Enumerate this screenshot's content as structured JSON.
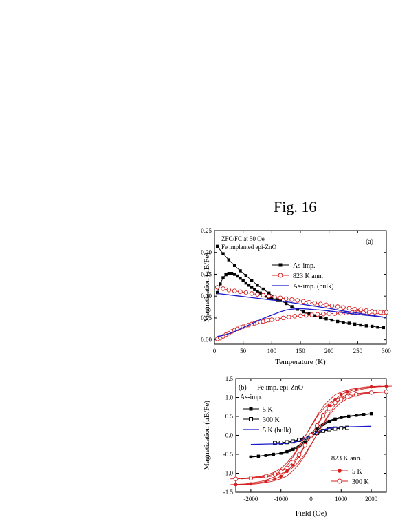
{
  "figure_title": "Fig. 16",
  "chart_data": [
    {
      "type": "line",
      "panel_label": "(a)",
      "annotations": [
        "ZFC/FC at 50 Oe",
        "Fe implanted epi-ZnO"
      ],
      "xlabel": "Temperature (K)",
      "ylabel": "Magnetization (μB/Fe)",
      "xlim": [
        0,
        300
      ],
      "ylim": [
        -0.01,
        0.25
      ],
      "xticks": [
        0,
        50,
        100,
        150,
        200,
        250,
        300
      ],
      "yticks": [
        0.0,
        0.05,
        0.1,
        0.15,
        0.2,
        0.25
      ],
      "ytick_labels": [
        "0.00",
        "0.05",
        "0.10",
        "0.15",
        "0.20",
        "0.25"
      ],
      "legend": [
        "As-imp.",
        "823 K ann.",
        "As-imp. (bulk)"
      ],
      "series": [
        {
          "name": "As-imp.",
          "branch": "FC",
          "color": "#000000",
          "marker": "filled-square",
          "x": [
            5,
            15,
            25,
            35,
            45,
            55,
            65,
            75,
            85,
            95,
            105,
            115,
            125,
            135,
            145,
            155,
            165,
            175,
            185,
            195,
            205,
            215,
            225,
            235,
            245,
            255,
            265,
            275,
            285,
            295
          ],
          "y": [
            0.214,
            0.197,
            0.183,
            0.17,
            0.158,
            0.147,
            0.136,
            0.125,
            0.116,
            0.107,
            0.098,
            0.09,
            0.083,
            0.076,
            0.07,
            0.064,
            0.059,
            0.055,
            0.051,
            0.048,
            0.045,
            0.042,
            0.04,
            0.038,
            0.036,
            0.034,
            0.032,
            0.031,
            0.029,
            0.028
          ]
        },
        {
          "name": "As-imp.",
          "branch": "ZFC",
          "color": "#000000",
          "marker": "filled-square",
          "x": [
            5,
            10,
            15,
            20,
            25,
            30,
            35,
            40,
            45,
            50,
            55,
            60,
            65,
            70,
            75,
            80,
            85,
            90,
            95,
            100,
            110
          ],
          "y": [
            0.108,
            0.128,
            0.142,
            0.149,
            0.152,
            0.152,
            0.15,
            0.146,
            0.141,
            0.136,
            0.13,
            0.125,
            0.12,
            0.115,
            0.111,
            0.107,
            0.103,
            0.1,
            0.097,
            0.094,
            0.09
          ]
        },
        {
          "name": "823 K ann.",
          "branch": "FC",
          "color": "#d42020",
          "marker": "open-circle",
          "x": [
            5,
            15,
            25,
            35,
            45,
            55,
            65,
            75,
            85,
            95,
            105,
            115,
            125,
            135,
            145,
            155,
            165,
            175,
            185,
            195,
            205,
            215,
            225,
            235,
            245,
            255,
            265,
            275,
            285,
            295
          ],
          "y": [
            0.12,
            0.117,
            0.114,
            0.112,
            0.11,
            0.108,
            0.106,
            0.104,
            0.102,
            0.1,
            0.098,
            0.096,
            0.094,
            0.092,
            0.09,
            0.088,
            0.086,
            0.084,
            0.082,
            0.08,
            0.078,
            0.076,
            0.074,
            0.072,
            0.07,
            0.069,
            0.067,
            0.065,
            0.064,
            0.062
          ]
        },
        {
          "name": "823 K ann.",
          "branch": "ZFC",
          "color": "#d42020",
          "marker": "open-circle",
          "x": [
            5,
            10,
            15,
            20,
            25,
            30,
            35,
            40,
            45,
            50,
            55,
            60,
            65,
            70,
            75,
            80,
            85,
            90,
            95,
            100,
            110,
            120,
            130,
            140,
            150,
            160,
            170,
            180,
            190,
            200,
            210,
            220,
            230,
            240,
            250,
            260,
            270,
            280,
            290,
            300
          ],
          "y": [
            0.002,
            0.004,
            0.008,
            0.012,
            0.015,
            0.019,
            0.022,
            0.025,
            0.028,
            0.03,
            0.032,
            0.034,
            0.036,
            0.038,
            0.04,
            0.041,
            0.042,
            0.044,
            0.045,
            0.046,
            0.048,
            0.05,
            0.052,
            0.054,
            0.055,
            0.056,
            0.057,
            0.058,
            0.059,
            0.06,
            0.06,
            0.061,
            0.061,
            0.062,
            0.062,
            0.062,
            0.063,
            0.063,
            0.063,
            0.063
          ]
        },
        {
          "name": "As-imp. (bulk)",
          "branch": "FC",
          "color": "#1a1acc",
          "marker": "none",
          "x": [
            5,
            25,
            50,
            75,
            100,
            125,
            150,
            175,
            200,
            225,
            250,
            275,
            300
          ],
          "y": [
            0.106,
            0.103,
            0.099,
            0.095,
            0.091,
            0.087,
            0.082,
            0.077,
            0.072,
            0.066,
            0.061,
            0.056,
            0.051
          ]
        },
        {
          "name": "As-imp. (bulk)",
          "branch": "ZFC",
          "color": "#1a1acc",
          "marker": "none",
          "x": [
            5,
            15,
            25,
            35,
            45,
            55,
            65,
            75,
            85,
            95,
            105,
            115,
            125,
            135,
            145,
            155,
            165,
            175,
            185,
            200,
            225,
            250,
            275,
            300
          ],
          "y": [
            0.008,
            0.01,
            0.014,
            0.019,
            0.025,
            0.031,
            0.037,
            0.043,
            0.049,
            0.054,
            0.059,
            0.064,
            0.068,
            0.07,
            0.071,
            0.071,
            0.07,
            0.069,
            0.068,
            0.066,
            0.062,
            0.058,
            0.055,
            0.051
          ]
        }
      ]
    },
    {
      "type": "line",
      "panel_label": "(b)",
      "annotations": [
        "Fe imp. epi-ZnO",
        "As-imp.",
        "823 K ann."
      ],
      "xlabel": "Field (Oe)",
      "ylabel": "Magnetization (μB/Fe)",
      "xlim": [
        -2500,
        2500
      ],
      "ylim": [
        -1.5,
        1.5
      ],
      "xticks": [
        -2000,
        -1000,
        0,
        1000,
        2000
      ],
      "yticks": [
        -1.5,
        -1.0,
        -0.5,
        0.0,
        0.5,
        1.0,
        1.5
      ],
      "ytick_labels": [
        "-1.5",
        "-1.0",
        "-0.5",
        "0.0",
        "0.5",
        "1.0",
        "1.5"
      ],
      "legend": [
        "5 K",
        "300 K",
        "5 K (bulk)",
        "5 K",
        "300 K"
      ],
      "series": [
        {
          "name": "5 K",
          "group": "As-imp.",
          "color": "#000000",
          "marker": "filled-square",
          "x": [
            -2000,
            -1750,
            -1500,
            -1250,
            -1000,
            -800,
            -600,
            -400,
            -200,
            0,
            200,
            400,
            600,
            800,
            1000,
            1250,
            1500,
            1750,
            2000
          ],
          "y": [
            -0.57,
            -0.55,
            -0.53,
            -0.5,
            -0.47,
            -0.43,
            -0.37,
            -0.29,
            -0.17,
            0.0,
            0.17,
            0.29,
            0.37,
            0.43,
            0.47,
            0.5,
            0.53,
            0.55,
            0.57
          ]
        },
        {
          "name": "300 K",
          "group": "As-imp.",
          "color": "#000000",
          "marker": "open-square",
          "x": [
            -1200,
            -1000,
            -800,
            -600,
            -400,
            -200,
            0,
            200,
            400,
            600,
            800,
            1000,
            1200
          ],
          "y": [
            -0.2,
            -0.19,
            -0.18,
            -0.16,
            -0.12,
            -0.06,
            0.0,
            0.06,
            0.12,
            0.16,
            0.18,
            0.19,
            0.2
          ]
        },
        {
          "name": "5 K (bulk)",
          "group": "As-imp.",
          "color": "#1a1acc",
          "marker": "none",
          "x": [
            -2000,
            -1500,
            -1000,
            -700,
            -500,
            -300,
            -150,
            0,
            150,
            300,
            500,
            700,
            1000,
            1500,
            2000
          ],
          "y": [
            -0.24,
            -0.23,
            -0.22,
            -0.2,
            -0.17,
            -0.12,
            -0.06,
            0.0,
            0.06,
            0.12,
            0.17,
            0.2,
            0.22,
            0.23,
            0.24
          ]
        },
        {
          "name": "5 K",
          "group": "823 K ann.",
          "color": "#d42020",
          "marker": "filled-circle",
          "x": [
            -2500,
            -2000,
            -1500,
            -1200,
            -1000,
            -800,
            -600,
            -400,
            -200,
            0,
            200,
            400,
            600,
            800,
            1000,
            1200,
            1500,
            2000,
            2500
          ],
          "y": [
            -1.3,
            -1.28,
            -1.22,
            -1.15,
            -1.08,
            -0.95,
            -0.78,
            -0.55,
            -0.28,
            0.0,
            0.28,
            0.55,
            0.78,
            0.95,
            1.08,
            1.15,
            1.22,
            1.28,
            1.3
          ]
        },
        {
          "name": "300 K",
          "group": "823 K ann.",
          "color": "#d42020",
          "marker": "open-circle",
          "x": [
            -2500,
            -2000,
            -1500,
            -1200,
            -1000,
            -800,
            -600,
            -400,
            -200,
            0,
            200,
            400,
            600,
            800,
            1000,
            1200,
            1500,
            2000,
            2500
          ],
          "y": [
            -1.15,
            -1.13,
            -1.08,
            -1.02,
            -0.96,
            -0.86,
            -0.71,
            -0.51,
            -0.26,
            0.0,
            0.26,
            0.51,
            0.71,
            0.86,
            0.96,
            1.02,
            1.08,
            1.13,
            1.15
          ]
        }
      ]
    }
  ]
}
